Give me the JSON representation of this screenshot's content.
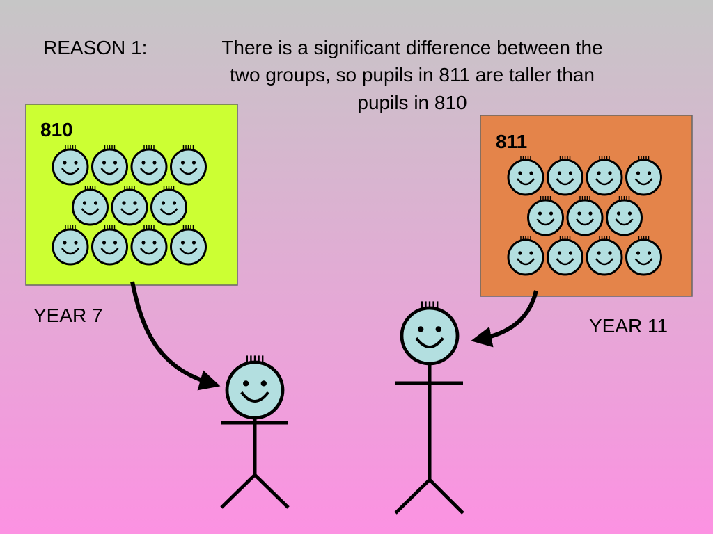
{
  "slide": {
    "reason_label": "REASON 1:",
    "statement_lines": [
      "There is a significant difference between the",
      "two groups, so pupils in 811 are taller than",
      "pupils in 810"
    ],
    "groups": [
      {
        "label": "810",
        "caption": "YEAR 7"
      },
      {
        "label": "811",
        "caption": "YEAR 11"
      }
    ]
  }
}
